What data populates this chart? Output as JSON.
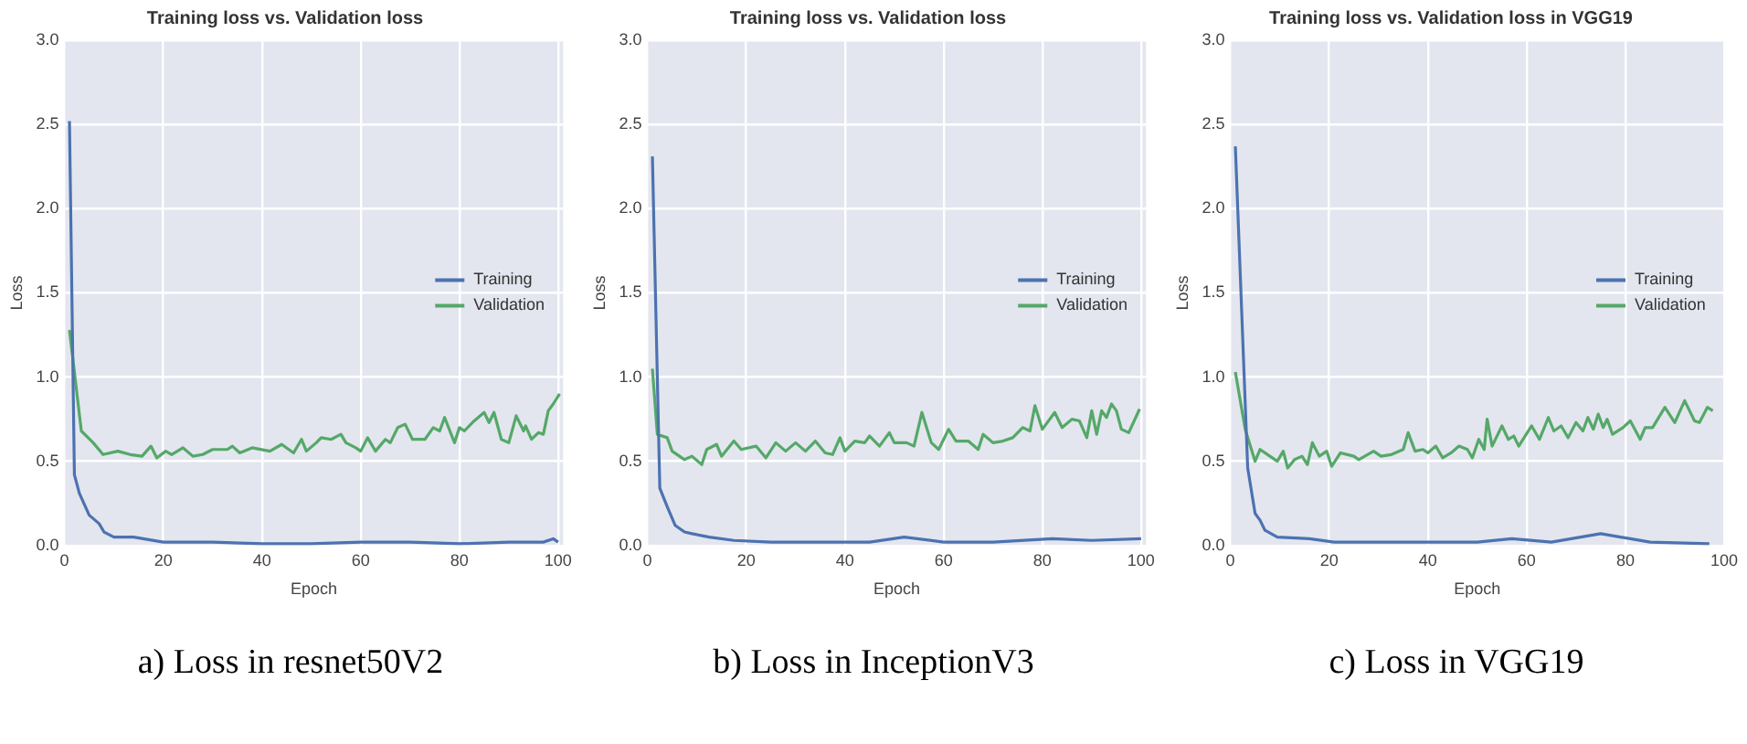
{
  "chart_data": [
    {
      "type": "line",
      "title": "Training loss vs. Validation loss",
      "xlabel": "Epoch",
      "ylabel": "Loss",
      "xlim": [
        0,
        101
      ],
      "xticks": [
        0,
        20,
        40,
        60,
        80,
        100
      ],
      "ylim": [
        0,
        3
      ],
      "yticks": [
        {
          "value": 0,
          "label": "0.0"
        },
        0.5,
        {
          "value": 1,
          "label": "1.0"
        },
        1.5,
        {
          "value": 2,
          "label": "2.0"
        },
        2.5,
        {
          "value": 3,
          "label": "3.0"
        }
      ],
      "grid": true,
      "legend": "right",
      "annotations": [
        "a)   Loss in resnet50V2"
      ],
      "series": [
        {
          "name": "Training",
          "color": "#4c72b0",
          "x": [
            1,
            2,
            3,
            5,
            7,
            8,
            10,
            14,
            20,
            30,
            40,
            50,
            60,
            70,
            80,
            90,
            97,
            99,
            100
          ],
          "values": [
            2.52,
            0.42,
            0.31,
            0.18,
            0.13,
            0.08,
            0.05,
            0.05,
            0.02,
            0.02,
            0.01,
            0.01,
            0.02,
            0.02,
            0.01,
            0.02,
            0.02,
            0.04,
            0.02
          ]
        },
        {
          "name": "Validation",
          "color": "#55a868",
          "x": [
            1,
            3.4,
            5.8,
            7.8,
            10.8,
            13.3,
            15.7,
            17.5,
            18.7,
            20.5,
            21.7,
            24,
            26,
            28,
            30,
            33,
            34,
            35.5,
            38,
            41.6,
            44,
            46.4,
            48,
            49,
            51,
            52,
            54,
            56,
            57,
            59,
            60,
            61.4,
            63,
            65,
            66,
            67.5,
            69,
            70.5,
            73,
            74.7,
            76,
            77,
            79,
            80,
            81,
            83,
            85,
            86,
            87,
            88.5,
            90,
            91.5,
            93,
            93.4,
            94.6,
            96,
            97,
            98,
            99,
            100.3
          ],
          "values": [
            1.28,
            0.68,
            0.61,
            0.54,
            0.56,
            0.54,
            0.53,
            0.59,
            0.52,
            0.56,
            0.54,
            0.58,
            0.53,
            0.54,
            0.57,
            0.57,
            0.59,
            0.55,
            0.58,
            0.56,
            0.6,
            0.55,
            0.63,
            0.56,
            0.61,
            0.64,
            0.63,
            0.66,
            0.61,
            0.58,
            0.56,
            0.64,
            0.56,
            0.63,
            0.61,
            0.7,
            0.72,
            0.63,
            0.63,
            0.7,
            0.68,
            0.76,
            0.61,
            0.7,
            0.68,
            0.74,
            0.79,
            0.73,
            0.79,
            0.63,
            0.61,
            0.77,
            0.68,
            0.71,
            0.63,
            0.67,
            0.66,
            0.8,
            0.84,
            0.9
          ]
        }
      ]
    },
    {
      "type": "line",
      "title": "Training loss vs. Validation loss",
      "xlabel": "Epoch",
      "ylabel": "Loss",
      "xlim": [
        0,
        101
      ],
      "xticks": [
        0,
        20,
        40,
        60,
        80,
        100
      ],
      "ylim": [
        0,
        3
      ],
      "yticks": [
        {
          "value": 0,
          "label": "0.0"
        },
        0.5,
        {
          "value": 1,
          "label": "1.0"
        },
        1.5,
        {
          "value": 2,
          "label": "2.0"
        },
        2.5,
        {
          "value": 3,
          "label": "3.0"
        }
      ],
      "grid": true,
      "legend": "right",
      "annotations": [
        "b) Loss in InceptionV3"
      ],
      "series": [
        {
          "name": "Training",
          "color": "#4c72b0",
          "x": [
            1,
            2.5,
            4,
            5.6,
            7.5,
            9,
            12.5,
            17.5,
            25,
            35,
            45,
            52,
            60,
            70,
            82,
            90,
            100
          ],
          "values": [
            2.31,
            0.34,
            0.23,
            0.12,
            0.08,
            0.07,
            0.05,
            0.03,
            0.02,
            0.02,
            0.02,
            0.05,
            0.02,
            0.02,
            0.04,
            0.03,
            0.04
          ]
        },
        {
          "name": "Validation",
          "color": "#55a868",
          "x": [
            1,
            2,
            4,
            5,
            7.5,
            9,
            11,
            12,
            14,
            15,
            17.5,
            19,
            22,
            24,
            26,
            28,
            30,
            32,
            34,
            36,
            37.5,
            39,
            40,
            42,
            44,
            45,
            47,
            49,
            50,
            52.5,
            54,
            55.6,
            57.5,
            59,
            61,
            62.5,
            65,
            67,
            68,
            70,
            72,
            74,
            76,
            77.5,
            78.5,
            80,
            82.5,
            84,
            86,
            87.5,
            89,
            90,
            91,
            92,
            93,
            94,
            95,
            96,
            97.5,
            99.7
          ],
          "values": [
            1.05,
            0.66,
            0.64,
            0.56,
            0.51,
            0.53,
            0.48,
            0.57,
            0.6,
            0.53,
            0.62,
            0.57,
            0.59,
            0.52,
            0.61,
            0.56,
            0.61,
            0.56,
            0.62,
            0.55,
            0.54,
            0.64,
            0.56,
            0.62,
            0.61,
            0.65,
            0.59,
            0.67,
            0.61,
            0.61,
            0.59,
            0.79,
            0.61,
            0.57,
            0.69,
            0.62,
            0.62,
            0.57,
            0.66,
            0.61,
            0.62,
            0.64,
            0.7,
            0.68,
            0.83,
            0.69,
            0.79,
            0.7,
            0.75,
            0.74,
            0.64,
            0.8,
            0.66,
            0.8,
            0.76,
            0.84,
            0.8,
            0.69,
            0.67,
            0.81
          ]
        }
      ]
    },
    {
      "type": "line",
      "title": "Training loss vs. Validation loss in VGG19",
      "xlabel": "Epoch",
      "ylabel": "Loss",
      "xlim": [
        0,
        100
      ],
      "xticks": [
        0,
        20,
        40,
        60,
        80,
        100
      ],
      "ylim": [
        0,
        3
      ],
      "yticks": [
        {
          "value": 0,
          "label": "0.0"
        },
        0.5,
        {
          "value": 1,
          "label": "1.0"
        },
        1.5,
        {
          "value": 2,
          "label": "2.0"
        },
        2.5,
        {
          "value": 3,
          "label": "3.0"
        }
      ],
      "grid": true,
      "legend": "right",
      "annotations": [
        "c) Loss in VGG19"
      ],
      "series": [
        {
          "name": "Training",
          "color": "#4c72b0",
          "x": [
            1,
            3.5,
            5,
            6,
            7,
            9.5,
            16,
            21,
            30,
            40,
            50,
            57,
            65,
            75,
            79,
            81,
            85,
            97
          ],
          "values": [
            2.37,
            0.46,
            0.19,
            0.15,
            0.09,
            0.05,
            0.04,
            0.02,
            0.02,
            0.02,
            0.02,
            0.04,
            0.02,
            0.07,
            0.05,
            0.04,
            0.02,
            0.01
          ]
        },
        {
          "name": "Validation",
          "color": "#55a868",
          "x": [
            1,
            3,
            5,
            6,
            8,
            9.5,
            10.7,
            11.6,
            13,
            14.5,
            15.6,
            16.6,
            18,
            19.5,
            20.5,
            22.3,
            25,
            26,
            29,
            30.5,
            32.6,
            35,
            36,
            37.4,
            39,
            40,
            41.6,
            43,
            44.7,
            46.3,
            48,
            49,
            50.3,
            51.4,
            52,
            53,
            55,
            56.3,
            57.4,
            58.4,
            61,
            62.6,
            64.4,
            65.5,
            67,
            68.4,
            70,
            71.4,
            72.4,
            73.5,
            74.5,
            75.5,
            76.3,
            77.4,
            79.5,
            81,
            83,
            84,
            85.5,
            88,
            90,
            92,
            94,
            95,
            96.6,
            97.7
          ],
          "values": [
            1.03,
            0.69,
            0.5,
            0.57,
            0.53,
            0.5,
            0.56,
            0.46,
            0.51,
            0.53,
            0.48,
            0.61,
            0.53,
            0.56,
            0.47,
            0.55,
            0.53,
            0.51,
            0.56,
            0.53,
            0.54,
            0.57,
            0.67,
            0.56,
            0.57,
            0.55,
            0.59,
            0.52,
            0.55,
            0.59,
            0.57,
            0.52,
            0.63,
            0.57,
            0.75,
            0.59,
            0.71,
            0.63,
            0.65,
            0.59,
            0.71,
            0.63,
            0.76,
            0.68,
            0.71,
            0.64,
            0.73,
            0.68,
            0.76,
            0.69,
            0.78,
            0.7,
            0.75,
            0.66,
            0.7,
            0.74,
            0.63,
            0.7,
            0.7,
            0.82,
            0.73,
            0.86,
            0.74,
            0.73,
            0.82,
            0.8
          ]
        }
      ]
    }
  ]
}
